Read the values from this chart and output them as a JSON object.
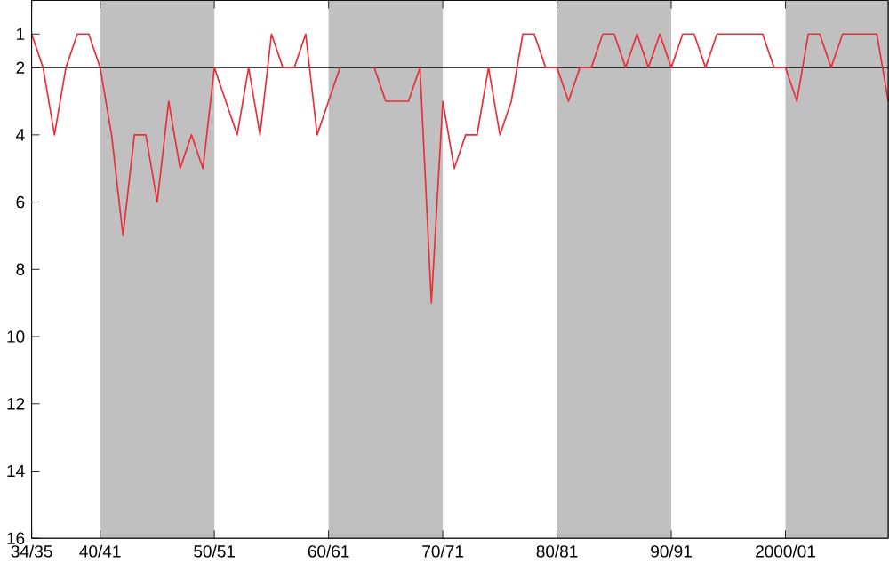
{
  "chart_data": {
    "type": "line",
    "categories": [
      "34/35",
      null,
      null,
      null,
      null,
      null,
      "40/41",
      null,
      null,
      null,
      null,
      null,
      null,
      null,
      null,
      null,
      "50/51",
      null,
      null,
      null,
      null,
      null,
      null,
      null,
      null,
      null,
      "60/61",
      null,
      null,
      null,
      null,
      null,
      null,
      null,
      null,
      null,
      "70/71",
      null,
      null,
      null,
      null,
      null,
      null,
      null,
      null,
      null,
      "80/81",
      null,
      null,
      null,
      null,
      null,
      null,
      null,
      null,
      null,
      "90/91",
      null,
      null,
      null,
      null,
      null,
      null,
      null,
      null,
      null,
      "2000/01",
      null,
      null,
      null,
      null,
      null,
      null,
      null,
      null,
      null
    ],
    "series": [
      {
        "color": "#e8303a",
        "values": [
          1,
          2,
          4,
          2,
          1,
          1,
          2,
          4,
          7,
          4,
          4,
          6,
          3,
          5,
          4,
          5,
          2,
          3,
          4,
          2,
          4,
          1,
          2,
          2,
          1,
          4,
          3,
          2,
          null,
          null,
          2,
          3,
          3,
          3,
          2,
          9,
          3,
          5,
          4,
          4,
          2,
          4,
          3,
          1,
          1,
          2,
          2,
          3,
          2,
          2,
          1,
          1,
          2,
          1,
          2,
          1,
          2,
          1,
          1,
          2,
          1,
          1,
          1,
          1,
          1,
          2,
          2,
          3,
          1,
          1,
          2,
          1,
          1,
          1,
          1,
          3
        ]
      }
    ],
    "ylim": [
      16,
      0
    ],
    "yticks": [
      1,
      2,
      4,
      6,
      8,
      10,
      12,
      14,
      16
    ],
    "ref_lines": [
      {
        "axis": "y",
        "value": 2,
        "color": "#000000"
      }
    ],
    "bands": [
      {
        "axis": "x",
        "from": "40/41",
        "to": "50/51",
        "color": "#c0c0c0"
      },
      {
        "axis": "x",
        "from": "60/61",
        "to": "70/71",
        "color": "#c0c0c0"
      },
      {
        "axis": "x",
        "from": "80/81",
        "to": "90/91",
        "color": "#c0c0c0"
      }
    ],
    "grid": false,
    "marker": "none",
    "line_style": "solid"
  }
}
